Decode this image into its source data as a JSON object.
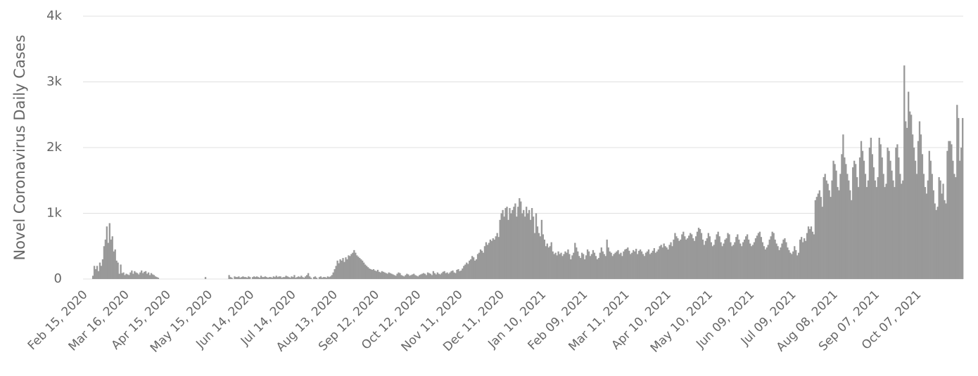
{
  "chart_data": {
    "type": "bar",
    "y_label": "Novel Coronavirus Daily Cases",
    "color": "#999999",
    "grid": true,
    "ylim": [
      0,
      4000
    ],
    "yticks": [
      0,
      {
        "value": 1000,
        "label": "1k"
      },
      {
        "value": 2000,
        "label": "2k"
      },
      {
        "value": 3000,
        "label": "3k"
      },
      {
        "value": 4000,
        "label": "4k"
      }
    ],
    "categories": [
      "Feb 15, 2020",
      null,
      null,
      null,
      null,
      null,
      null,
      null,
      null,
      null,
      null,
      null,
      null,
      null,
      null,
      null,
      null,
      null,
      null,
      null,
      null,
      null,
      null,
      null,
      null,
      null,
      null,
      null,
      null,
      null,
      "Mar 16, 2020",
      null,
      null,
      null,
      null,
      null,
      null,
      null,
      null,
      null,
      null,
      null,
      null,
      null,
      null,
      null,
      null,
      null,
      null,
      null,
      null,
      null,
      null,
      null,
      null,
      null,
      null,
      null,
      null,
      null,
      "Apr 15, 2020",
      null,
      null,
      null,
      null,
      null,
      null,
      null,
      null,
      null,
      null,
      null,
      null,
      null,
      null,
      null,
      null,
      null,
      null,
      null,
      null,
      null,
      null,
      null,
      null,
      null,
      null,
      null,
      null,
      null,
      "May 15, 2020",
      null,
      null,
      null,
      null,
      null,
      null,
      null,
      null,
      null,
      null,
      null,
      null,
      null,
      null,
      null,
      null,
      null,
      null,
      null,
      null,
      null,
      null,
      null,
      null,
      null,
      null,
      null,
      null,
      null,
      "Jun 14, 2020",
      null,
      null,
      null,
      null,
      null,
      null,
      null,
      null,
      null,
      null,
      null,
      null,
      null,
      null,
      null,
      null,
      null,
      null,
      null,
      null,
      null,
      null,
      null,
      null,
      null,
      null,
      null,
      null,
      null,
      "Jul 14, 2020",
      null,
      null,
      null,
      null,
      null,
      null,
      null,
      null,
      null,
      null,
      null,
      null,
      null,
      null,
      null,
      null,
      null,
      null,
      null,
      null,
      null,
      null,
      null,
      null,
      null,
      null,
      null,
      null,
      null,
      "Aug 13, 2020",
      null,
      null,
      null,
      null,
      null,
      null,
      null,
      null,
      null,
      null,
      null,
      null,
      null,
      null,
      null,
      null,
      null,
      null,
      null,
      null,
      null,
      null,
      null,
      null,
      null,
      null,
      null,
      null,
      null,
      "Sep 12, 2020",
      null,
      null,
      null,
      null,
      null,
      null,
      null,
      null,
      null,
      null,
      null,
      null,
      null,
      null,
      null,
      null,
      null,
      null,
      null,
      null,
      null,
      null,
      null,
      null,
      null,
      null,
      null,
      null,
      null,
      "Oct 12, 2020",
      null,
      null,
      null,
      null,
      null,
      null,
      null,
      null,
      null,
      null,
      null,
      null,
      null,
      null,
      null,
      null,
      null,
      null,
      null,
      null,
      null,
      null,
      null,
      null,
      null,
      null,
      null,
      null,
      null,
      "Nov 11, 2020",
      null,
      null,
      null,
      null,
      null,
      null,
      null,
      null,
      null,
      null,
      null,
      null,
      null,
      null,
      null,
      null,
      null,
      null,
      null,
      null,
      null,
      null,
      null,
      null,
      null,
      null,
      null,
      null,
      null,
      "Dec 11, 2020",
      null,
      null,
      null,
      null,
      null,
      null,
      null,
      null,
      null,
      null,
      null,
      null,
      null,
      null,
      null,
      null,
      null,
      null,
      null,
      null,
      null,
      null,
      null,
      null,
      null,
      null,
      null,
      null,
      null,
      "Jan 10, 2021",
      null,
      null,
      null,
      null,
      null,
      null,
      null,
      null,
      null,
      null,
      null,
      null,
      null,
      null,
      null,
      null,
      null,
      null,
      null,
      null,
      null,
      null,
      null,
      null,
      null,
      null,
      null,
      null,
      null,
      "Feb 09, 2021",
      null,
      null,
      null,
      null,
      null,
      null,
      null,
      null,
      null,
      null,
      null,
      null,
      null,
      null,
      null,
      null,
      null,
      null,
      null,
      null,
      null,
      null,
      null,
      null,
      null,
      null,
      null,
      null,
      null,
      "Mar 11, 2021",
      null,
      null,
      null,
      null,
      null,
      null,
      null,
      null,
      null,
      null,
      null,
      null,
      null,
      null,
      null,
      null,
      null,
      null,
      null,
      null,
      null,
      null,
      null,
      null,
      null,
      null,
      null,
      null,
      null,
      "Apr 10, 2021",
      null,
      null,
      null,
      null,
      null,
      null,
      null,
      null,
      null,
      null,
      null,
      null,
      null,
      null,
      null,
      null,
      null,
      null,
      null,
      null,
      null,
      null,
      null,
      null,
      null,
      null,
      null,
      null,
      null,
      "May 10, 2021",
      null,
      null,
      null,
      null,
      null,
      null,
      null,
      null,
      null,
      null,
      null,
      null,
      null,
      null,
      null,
      null,
      null,
      null,
      null,
      null,
      null,
      null,
      null,
      null,
      null,
      null,
      null,
      null,
      null,
      "Jun 09, 2021",
      null,
      null,
      null,
      null,
      null,
      null,
      null,
      null,
      null,
      null,
      null,
      null,
      null,
      null,
      null,
      null,
      null,
      null,
      null,
      null,
      null,
      null,
      null,
      null,
      null,
      null,
      null,
      null,
      null,
      "Jul 09, 2021",
      null,
      null,
      null,
      null,
      null,
      null,
      null,
      null,
      null,
      null,
      null,
      null,
      null,
      null,
      null,
      null,
      null,
      null,
      null,
      null,
      null,
      null,
      null,
      null,
      null,
      null,
      null,
      null,
      null,
      "Aug 08, 2021",
      null,
      null,
      null,
      null,
      null,
      null,
      null,
      null,
      null,
      null,
      null,
      null,
      null,
      null,
      null,
      null,
      null,
      null,
      null,
      null,
      null,
      null,
      null,
      null,
      null,
      null,
      null,
      null,
      null,
      "Sep 07, 2021",
      null,
      null,
      null,
      null,
      null,
      null,
      null,
      null,
      null,
      null,
      null,
      null,
      null,
      null,
      null,
      null,
      null,
      null,
      null,
      null,
      null,
      null,
      null,
      null,
      null,
      null,
      null,
      null,
      null,
      "Oct 07, 2021",
      null,
      null,
      null,
      null,
      null,
      null,
      null,
      null,
      null,
      null,
      null,
      null,
      null,
      null,
      null,
      null,
      null,
      null,
      null,
      null,
      null,
      null,
      null,
      null,
      null,
      null,
      null,
      null
    ],
    "values": [
      0,
      0,
      50,
      200,
      150,
      200,
      120,
      250,
      200,
      300,
      500,
      600,
      800,
      550,
      850,
      600,
      650,
      420,
      450,
      280,
      250,
      80,
      220,
      90,
      100,
      60,
      80,
      70,
      60,
      100,
      130,
      80,
      120,
      100,
      90,
      70,
      100,
      130,
      90,
      110,
      120,
      80,
      100,
      60,
      90,
      70,
      60,
      40,
      30,
      20,
      0,
      0,
      0,
      0,
      0,
      0,
      0,
      0,
      0,
      0,
      0,
      0,
      0,
      0,
      0,
      0,
      0,
      0,
      0,
      0,
      0,
      0,
      0,
      0,
      0,
      0,
      0,
      0,
      0,
      0,
      0,
      0,
      0,
      30,
      0,
      0,
      0,
      0,
      0,
      0,
      0,
      0,
      0,
      0,
      0,
      0,
      0,
      0,
      0,
      0,
      60,
      30,
      20,
      0,
      40,
      30,
      30,
      40,
      20,
      30,
      40,
      30,
      30,
      20,
      40,
      30,
      0,
      30,
      40,
      30,
      40,
      30,
      20,
      50,
      30,
      30,
      40,
      30,
      20,
      30,
      30,
      20,
      40,
      30,
      50,
      30,
      40,
      40,
      20,
      30,
      30,
      50,
      40,
      30,
      20,
      40,
      30,
      60,
      20,
      30,
      40,
      30,
      50,
      30,
      20,
      40,
      60,
      90,
      40,
      20,
      0,
      30,
      40,
      20,
      0,
      30,
      40,
      20,
      30,
      30,
      20,
      40,
      30,
      40,
      60,
      100,
      150,
      200,
      280,
      240,
      300,
      280,
      320,
      260,
      330,
      300,
      360,
      350,
      380,
      400,
      440,
      400,
      360,
      340,
      320,
      300,
      280,
      250,
      220,
      200,
      180,
      160,
      150,
      140,
      150,
      130,
      120,
      140,
      110,
      100,
      120,
      110,
      100,
      90,
      80,
      100,
      90,
      80,
      70,
      60,
      50,
      80,
      100,
      90,
      60,
      50,
      40,
      60,
      80,
      70,
      50,
      60,
      70,
      80,
      60,
      50,
      40,
      60,
      70,
      80,
      90,
      80,
      60,
      100,
      90,
      80,
      60,
      120,
      90,
      70,
      100,
      80,
      70,
      90,
      110,
      120,
      90,
      100,
      80,
      100,
      120,
      130,
      100,
      90,
      140,
      150,
      120,
      130,
      160,
      200,
      220,
      250,
      230,
      280,
      300,
      350,
      330,
      280,
      300,
      380,
      400,
      450,
      430,
      400,
      500,
      560,
      520,
      550,
      600,
      580,
      620,
      600,
      650,
      700,
      640,
      900,
      1000,
      1050,
      950,
      1080,
      1100,
      900,
      1080,
      1000,
      1050,
      1100,
      1150,
      950,
      1100,
      1230,
      1180,
      1000,
      1050,
      950,
      1100,
      1000,
      1050,
      900,
      1080,
      950,
      700,
      1000,
      800,
      700,
      650,
      900,
      680,
      600,
      500,
      540,
      480,
      500,
      560,
      420,
      380,
      400,
      360,
      420,
      380,
      400,
      350,
      380,
      420,
      400,
      450,
      380,
      300,
      360,
      400,
      550,
      480,
      420,
      350,
      320,
      400,
      380,
      300,
      360,
      450,
      420,
      350,
      380,
      440,
      400,
      350,
      300,
      320,
      400,
      480,
      420,
      380,
      350,
      600,
      480,
      420,
      400,
      350,
      380,
      400,
      420,
      440,
      380,
      400,
      350,
      420,
      450,
      460,
      480,
      430,
      380,
      400,
      440,
      420,
      460,
      380,
      430,
      450,
      420,
      380,
      350,
      400,
      420,
      450,
      380,
      400,
      430,
      470,
      400,
      420,
      450,
      500,
      520,
      480,
      540,
      500,
      480,
      450,
      520,
      560,
      500,
      600,
      700,
      650,
      620,
      580,
      600,
      680,
      720,
      650,
      600,
      620,
      660,
      700,
      680,
      620,
      580,
      650,
      720,
      780,
      760,
      700,
      600,
      520,
      580,
      620,
      700,
      650,
      560,
      500,
      520,
      600,
      680,
      720,
      650,
      560,
      500,
      540,
      600,
      620,
      700,
      680,
      560,
      500,
      520,
      560,
      640,
      680,
      600,
      540,
      500,
      560,
      600,
      650,
      680,
      600,
      540,
      500,
      520,
      560,
      620,
      660,
      700,
      720,
      640,
      560,
      500,
      450,
      480,
      520,
      600,
      650,
      720,
      700,
      600,
      540,
      500,
      440,
      480,
      540,
      600,
      620,
      560,
      480,
      440,
      400,
      380,
      420,
      500,
      440,
      360,
      400,
      600,
      640,
      560,
      620,
      580,
      700,
      800,
      760,
      800,
      720,
      680,
      1200,
      1250,
      1300,
      1350,
      1250,
      1100,
      1550,
      1600,
      1500,
      1450,
      1350,
      1250,
      1500,
      1800,
      1750,
      1650,
      1400,
      1350,
      1600,
      1900,
      2200,
      1850,
      1750,
      1600,
      1500,
      1350,
      1200,
      1700,
      1800,
      1750,
      1550,
      1400,
      1850,
      2100,
      1950,
      1800,
      1600,
      1400,
      1500,
      2000,
      2150,
      1900,
      1700,
      1500,
      1400,
      1550,
      2150,
      2050,
      1850,
      1600,
      1400,
      1450,
      2000,
      1950,
      1800,
      1650,
      1500,
      1400,
      2000,
      2050,
      1850,
      1600,
      1450,
      1500,
      3250,
      2400,
      2300,
      2850,
      2550,
      2500,
      2200,
      2000,
      1800,
      1600,
      2100,
      2400,
      2200,
      1900,
      1600,
      1400,
      1300,
      1500,
      1950,
      1800,
      1600,
      1350,
      1150,
      1050,
      1100,
      1550,
      1500,
      1300,
      1450,
      1200,
      1150,
      1950,
      2100,
      2100,
      2050,
      1800,
      1600,
      1550,
      2650,
      2450,
      1800,
      2000,
      2450
    ]
  }
}
